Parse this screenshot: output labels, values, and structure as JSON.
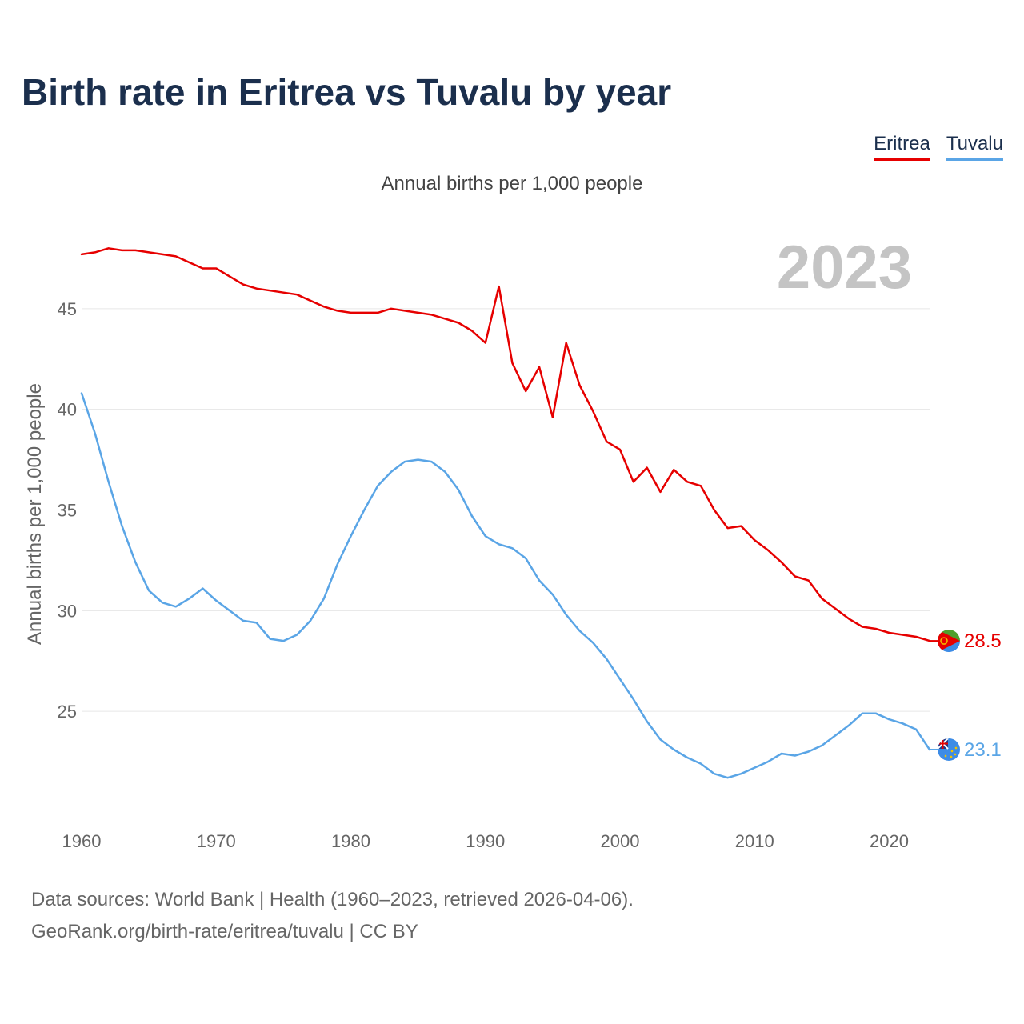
{
  "title": "Birth rate in Eritrea vs Tuvalu by year",
  "subtitle": "Annual births per 1,000 people",
  "legend": [
    {
      "label": "Eritrea",
      "color": "#e60000"
    },
    {
      "label": "Tuvalu",
      "color": "#5aa5e6"
    }
  ],
  "source": {
    "line1": "Data sources: World Bank | Health (1960–2023, retrieved 2026-04-06).",
    "line2": "GeoRank.org/birth-rate/eritrea/tuvalu | CC BY"
  },
  "chart_data": {
    "type": "line",
    "title": "Birth rate in Eritrea vs Tuvalu by year",
    "ylabel": "Annual births per 1,000 people",
    "xlabel": "",
    "year_label": "2023",
    "xlim": [
      1960,
      2023
    ],
    "ylim": [
      20,
      50
    ],
    "xticks": [
      1960,
      1970,
      1980,
      1990,
      2000,
      2010,
      2020
    ],
    "yticks": [
      25,
      30,
      35,
      40,
      45
    ],
    "grid": true,
    "x": [
      1960,
      1961,
      1962,
      1963,
      1964,
      1965,
      1966,
      1967,
      1968,
      1969,
      1970,
      1971,
      1972,
      1973,
      1974,
      1975,
      1976,
      1977,
      1978,
      1979,
      1980,
      1981,
      1982,
      1983,
      1984,
      1985,
      1986,
      1987,
      1988,
      1989,
      1990,
      1991,
      1992,
      1993,
      1994,
      1995,
      1996,
      1997,
      1998,
      1999,
      2000,
      2001,
      2002,
      2003,
      2004,
      2005,
      2006,
      2007,
      2008,
      2009,
      2010,
      2011,
      2012,
      2013,
      2014,
      2015,
      2016,
      2017,
      2018,
      2019,
      2020,
      2021,
      2022,
      2023
    ],
    "series": [
      {
        "name": "Eritrea",
        "color": "#e60000",
        "last_label": "28.5",
        "values": [
          47.7,
          47.8,
          48.0,
          47.9,
          47.9,
          47.8,
          47.7,
          47.6,
          47.3,
          47.0,
          47.0,
          46.6,
          46.2,
          46.0,
          45.9,
          45.8,
          45.7,
          45.4,
          45.1,
          44.9,
          44.8,
          44.8,
          44.8,
          45.0,
          44.9,
          44.8,
          44.7,
          44.5,
          44.3,
          43.9,
          43.3,
          46.1,
          42.3,
          40.9,
          42.1,
          39.6,
          43.3,
          41.2,
          39.9,
          38.4,
          38.0,
          36.4,
          37.1,
          35.9,
          37.0,
          36.4,
          36.2,
          35.0,
          34.1,
          34.2,
          33.5,
          33.0,
          32.4,
          31.7,
          31.5,
          30.6,
          30.1,
          29.6,
          29.2,
          29.1,
          28.9,
          28.8,
          28.7,
          28.5
        ]
      },
      {
        "name": "Tuvalu",
        "color": "#5aa5e6",
        "last_label": "23.1",
        "values": [
          40.8,
          38.8,
          36.4,
          34.2,
          32.4,
          31.0,
          30.4,
          30.2,
          30.6,
          31.1,
          30.5,
          30.0,
          29.5,
          29.4,
          28.6,
          28.5,
          28.8,
          29.5,
          30.6,
          32.3,
          33.7,
          35.0,
          36.2,
          36.9,
          37.4,
          37.5,
          37.4,
          36.9,
          36.0,
          34.7,
          33.7,
          33.3,
          33.1,
          32.6,
          31.5,
          30.8,
          29.8,
          29.0,
          28.4,
          27.6,
          26.6,
          25.6,
          24.5,
          23.6,
          23.1,
          22.7,
          22.4,
          21.9,
          21.7,
          21.9,
          22.2,
          22.5,
          22.9,
          22.8,
          23.0,
          23.3,
          23.8,
          24.3,
          24.9,
          24.9,
          24.6,
          24.4,
          24.1,
          23.1
        ]
      }
    ]
  }
}
